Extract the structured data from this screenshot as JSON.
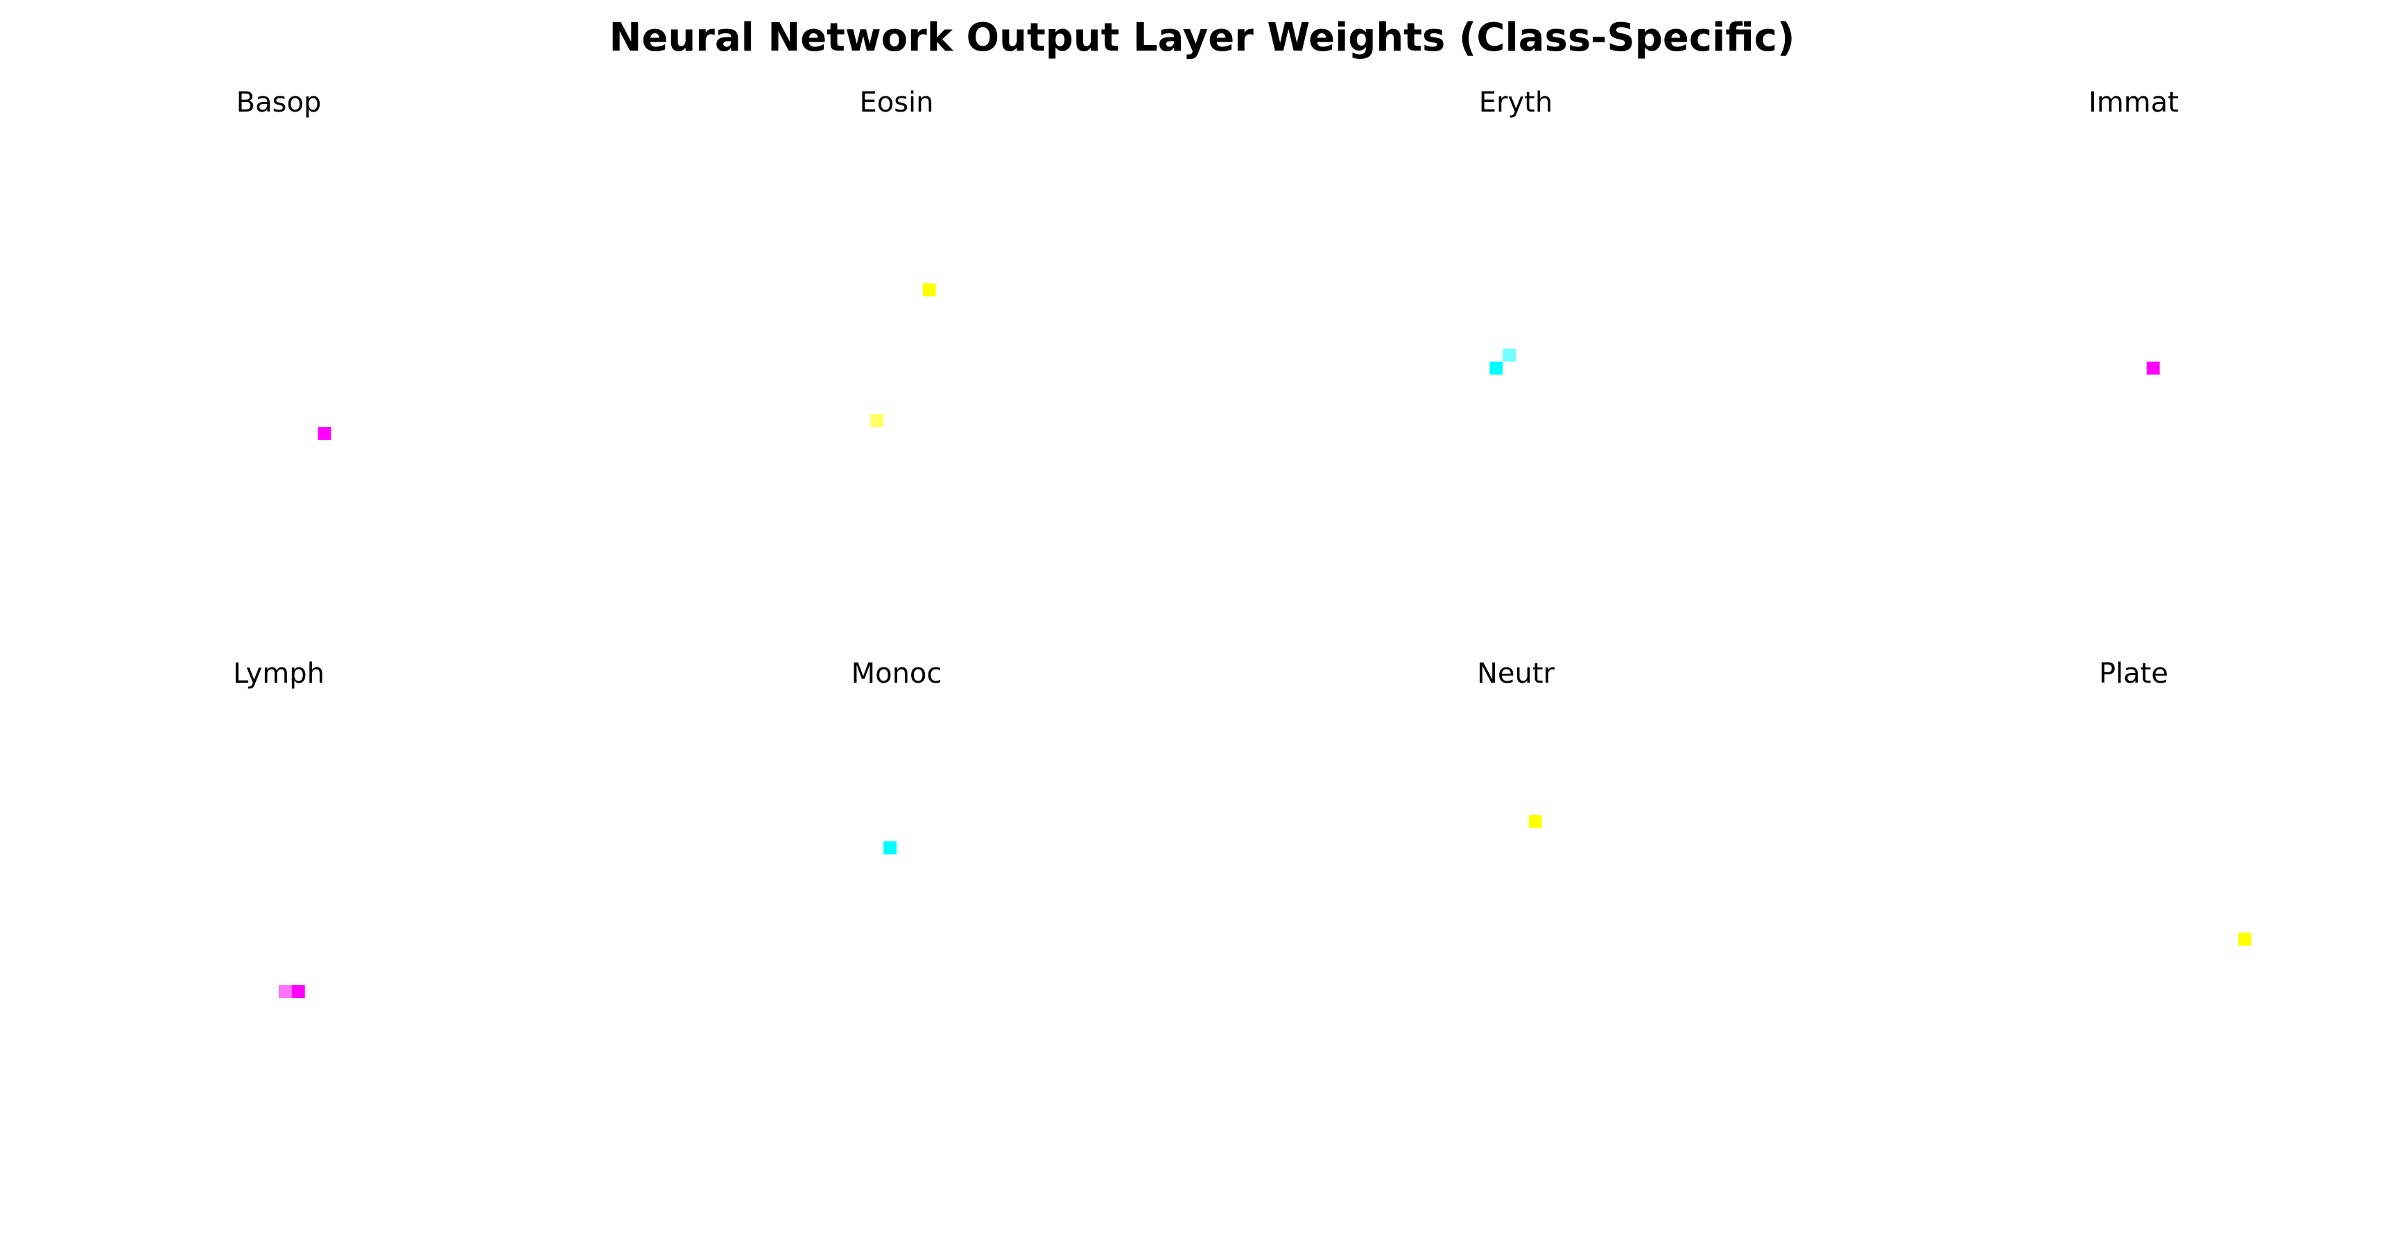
{
  "chart_data": {
    "type": "heatmap",
    "title": "Neural Network Output Layer Weights (Class-Specific)",
    "grid_size": [
      28,
      28
    ],
    "axes": "off",
    "layout": "2 rows x 4 columns",
    "background_value": 0,
    "colors": {
      "magenta": "#ff00ff",
      "yellow": "#ffff00",
      "cyan": "#00ffff"
    },
    "panels": [
      {
        "title": "Basop",
        "cells": [
          {
            "row": 21,
            "col": 17,
            "color": "#ff00ff",
            "intensity": 1.0
          }
        ]
      },
      {
        "title": "Eosin",
        "cells": [
          {
            "row": 10,
            "col": 16,
            "color": "#ffff00",
            "intensity": 1.0
          },
          {
            "row": 20,
            "col": 12,
            "color": "#ffff00",
            "intensity": 0.6
          }
        ]
      },
      {
        "title": "Eryth",
        "cells": [
          {
            "row": 15,
            "col": 13,
            "color": "#00ffff",
            "intensity": 0.55
          },
          {
            "row": 16,
            "col": 12,
            "color": "#00ffff",
            "intensity": 1.0
          }
        ]
      },
      {
        "title": "Immat",
        "cells": [
          {
            "row": 16,
            "col": 15,
            "color": "#ff00ff",
            "intensity": 1.0
          }
        ]
      },
      {
        "title": "Lymph",
        "cells": [
          {
            "row": 20,
            "col": 14,
            "color": "#ff00ff",
            "intensity": 0.55
          },
          {
            "row": 20,
            "col": 15,
            "color": "#ff00ff",
            "intensity": 1.0
          }
        ]
      },
      {
        "title": "Monoc",
        "cells": [
          {
            "row": 9,
            "col": 13,
            "color": "#00ffff",
            "intensity": 1.0
          }
        ]
      },
      {
        "title": "Neutr",
        "cells": [
          {
            "row": 7,
            "col": 15,
            "color": "#ffff00",
            "intensity": 1.0
          }
        ]
      },
      {
        "title": "Plate",
        "cells": [
          {
            "row": 16,
            "col": 22,
            "color": "#ffff00",
            "intensity": 1.0
          }
        ]
      }
    ]
  }
}
